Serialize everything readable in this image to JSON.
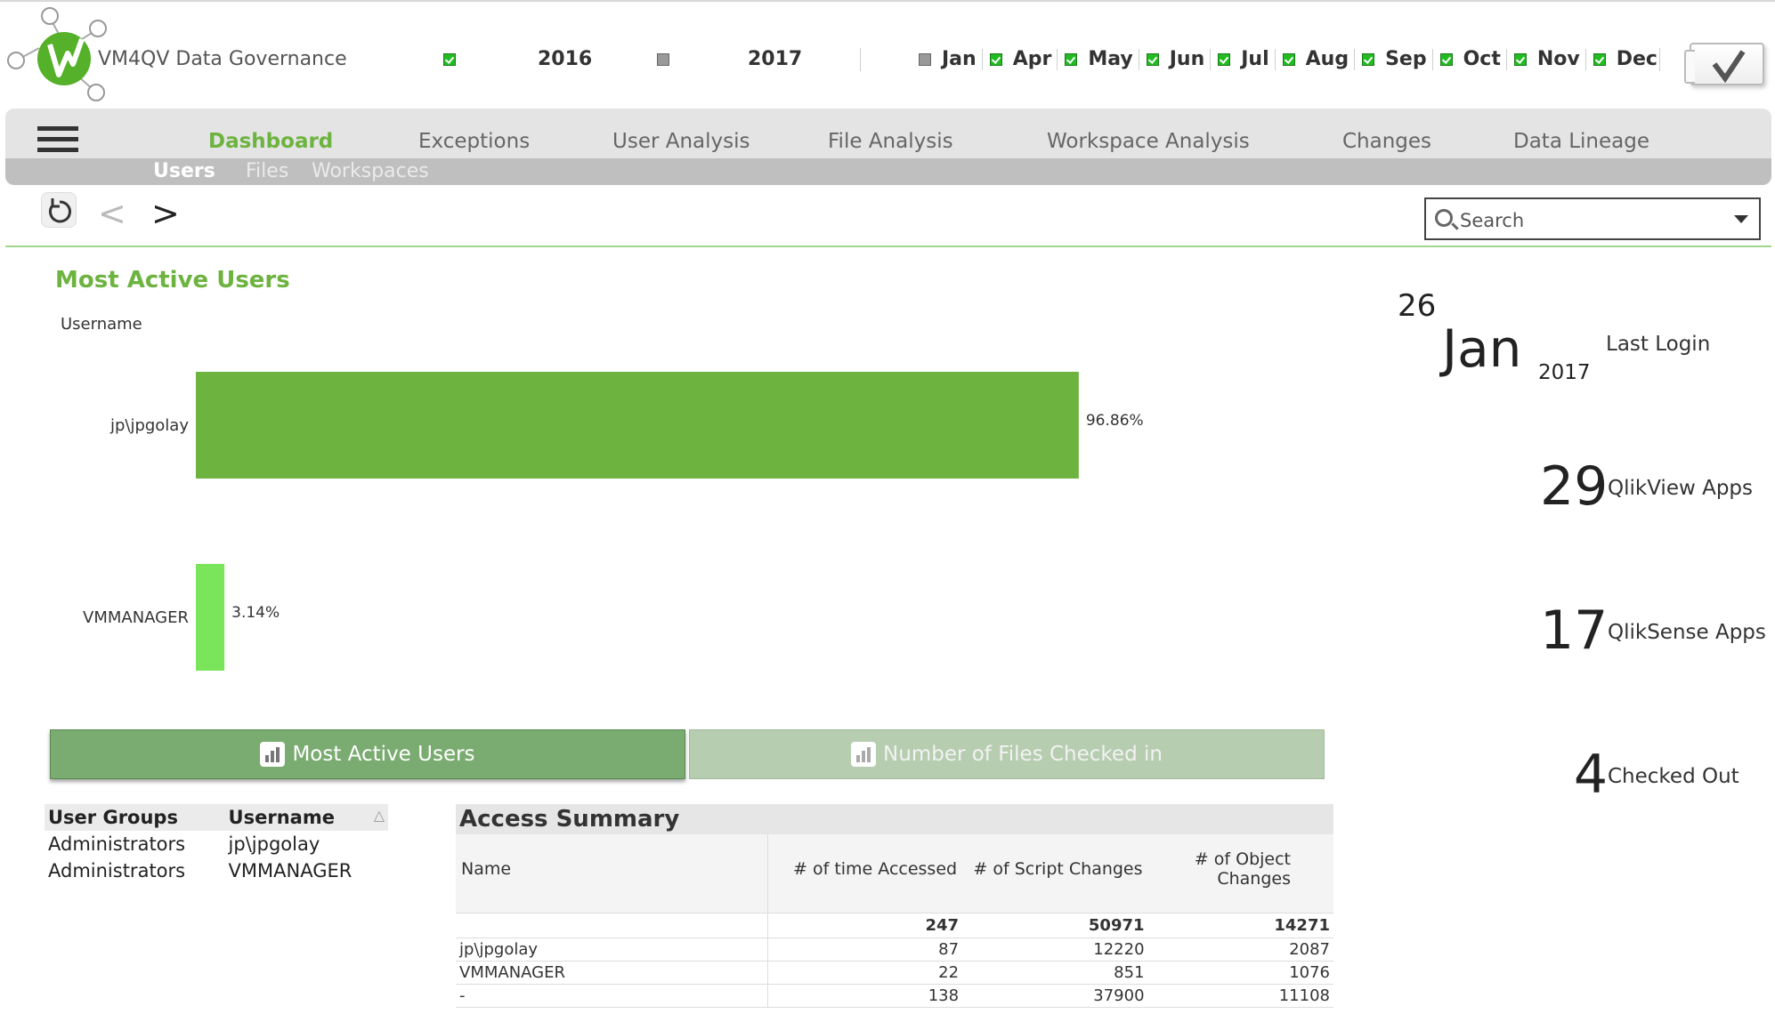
{
  "header": {
    "app_title": "VM4QV  Data Governance",
    "years": [
      {
        "label": "2016",
        "selected": true
      },
      {
        "label": "2017",
        "selected": false
      }
    ],
    "months": [
      {
        "label": "Jan",
        "selected": false
      },
      {
        "label": "Apr",
        "selected": true
      },
      {
        "label": "May",
        "selected": true
      },
      {
        "label": "Jun",
        "selected": true
      },
      {
        "label": "Jul",
        "selected": true
      },
      {
        "label": "Aug",
        "selected": true
      },
      {
        "label": "Sep",
        "selected": true
      },
      {
        "label": "Oct",
        "selected": true
      },
      {
        "label": "Nov",
        "selected": true
      },
      {
        "label": "Dec",
        "selected": true
      }
    ],
    "confirm_icon": "checkmark-icon"
  },
  "nav": {
    "tabs": [
      {
        "label": "Dashboard",
        "active": true
      },
      {
        "label": "Exceptions",
        "active": false
      },
      {
        "label": "User Analysis",
        "active": false
      },
      {
        "label": "File Analysis",
        "active": false
      },
      {
        "label": "Workspace Analysis",
        "active": false
      },
      {
        "label": "Changes",
        "active": false
      },
      {
        "label": "Data Lineage",
        "active": false
      }
    ],
    "subtabs": [
      {
        "label": "Users",
        "active": true
      },
      {
        "label": "Files",
        "active": false
      },
      {
        "label": "Workspaces",
        "active": false
      }
    ]
  },
  "toolbar": {
    "back_label": "<",
    "forward_label": ">",
    "search_placeholder": "Search"
  },
  "chart_data": {
    "type": "bar",
    "orientation": "horizontal",
    "title": "Most Active Users",
    "ylabel": "Username",
    "categories": [
      "jp\\jpgolay",
      "VMMANAGER"
    ],
    "values": [
      96.86,
      3.14
    ],
    "value_labels": [
      "96.86%",
      "3.14%"
    ],
    "colors": [
      "#6db33f",
      "#7ae55a"
    ],
    "xlim": [
      0,
      100
    ]
  },
  "chart_buttons": {
    "most_active": "Most Active Users",
    "files_checked_in": "Number of Files Checked in"
  },
  "kpis": {
    "last_login_day": "26",
    "last_login_month": "Jan",
    "last_login_year": "2017",
    "last_login_label": "Last Login",
    "qlikview_count": "29",
    "qlikview_label": "QlikView Apps",
    "qliksense_count": "17",
    "qliksense_label": "QlikSense Apps",
    "checked_out_count": "4",
    "checked_out_label": "Checked Out"
  },
  "user_groups": {
    "headers": [
      "User Groups",
      "Username"
    ],
    "rows": [
      [
        "Administrators",
        "jp\\jpgolay"
      ],
      [
        "Administrators",
        "VMMANAGER"
      ]
    ]
  },
  "access_summary": {
    "title": "Access Summary",
    "headers": [
      "Name",
      "# of time Accessed",
      "# of Script Changes",
      "# of Object Changes"
    ],
    "totals": [
      "",
      "247",
      "50971",
      "14271"
    ],
    "rows": [
      [
        "jp\\jpgolay",
        "87",
        "12220",
        "2087"
      ],
      [
        "VMMANAGER",
        "22",
        "851",
        "1076"
      ],
      [
        "-",
        "138",
        "37900",
        "11108"
      ]
    ]
  }
}
